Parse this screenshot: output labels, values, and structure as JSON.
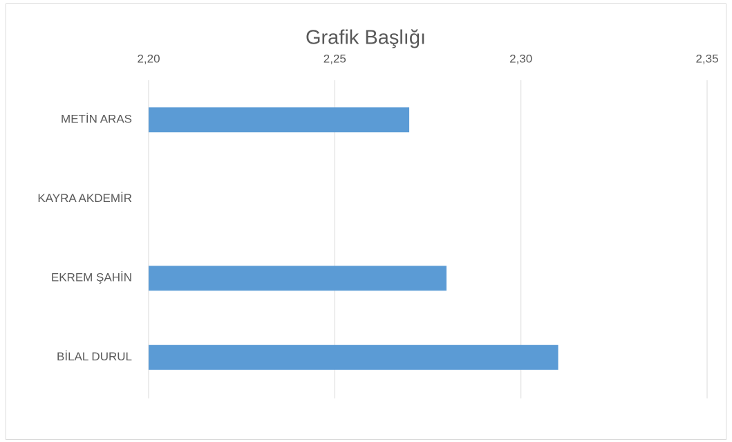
{
  "chart_data": {
    "type": "bar",
    "orientation": "horizontal",
    "title": "Grafik Başlığı",
    "categories": [
      "METİN ARAS",
      "KAYRA AKDEMİR",
      "EKREM ŞAHİN",
      "BİLAL DURUL"
    ],
    "values": [
      2.27,
      null,
      2.28,
      2.31
    ],
    "color": "#5b9bd5",
    "xlim": [
      2.2,
      2.35
    ],
    "xticks": [
      {
        "value": 2.2,
        "label": "2,20"
      },
      {
        "value": 2.25,
        "label": "2,25"
      },
      {
        "value": 2.3,
        "label": "2,30"
      },
      {
        "value": 2.35,
        "label": "2,35"
      }
    ],
    "grid": true
  }
}
